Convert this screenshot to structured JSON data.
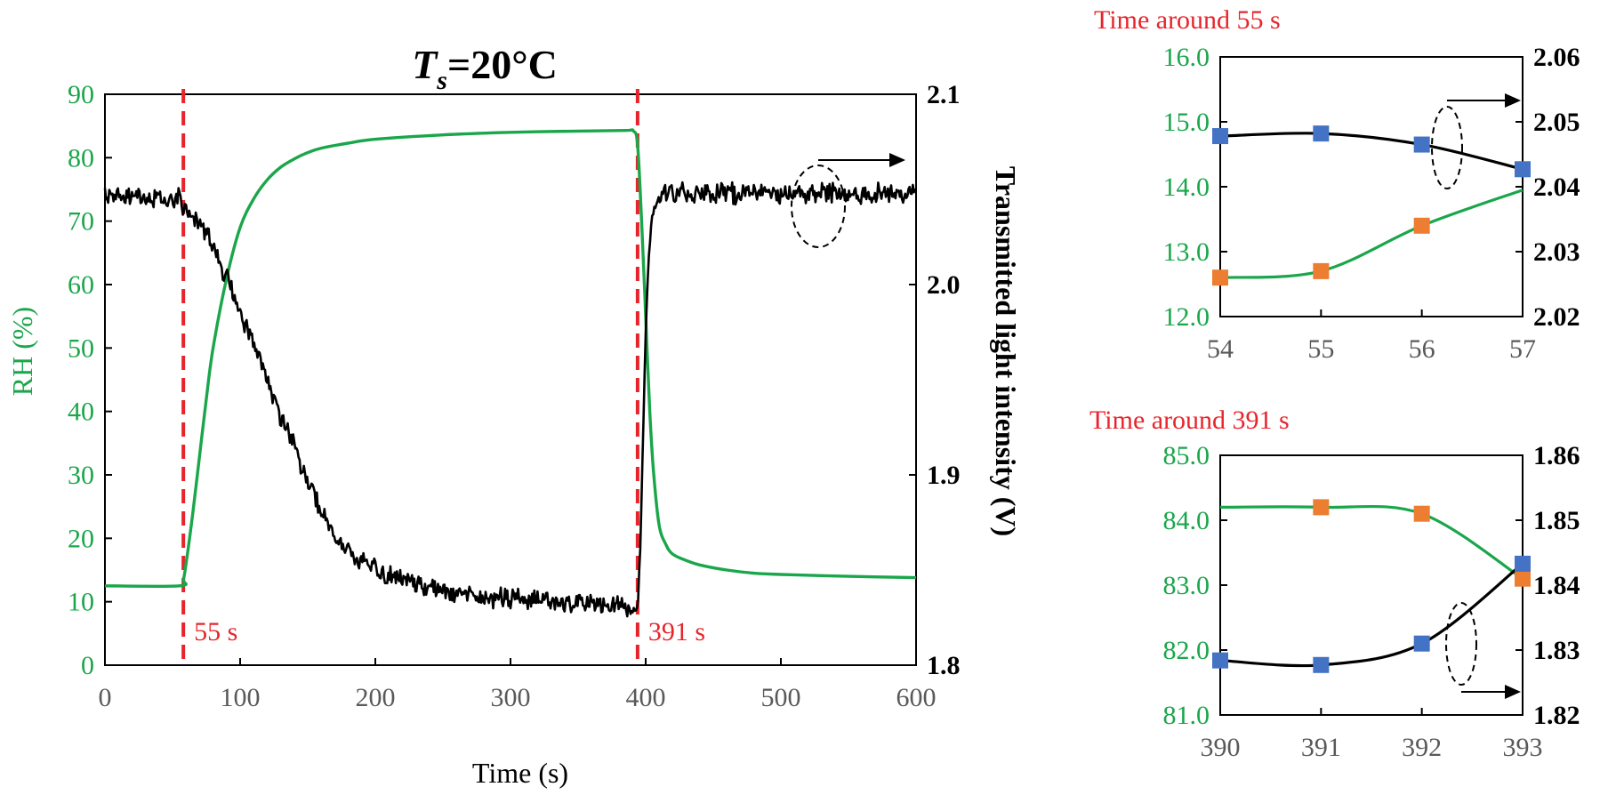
{
  "colors": {
    "rh": "#1aa64a",
    "intensity": "#000000",
    "event_line": "#e8242b",
    "rh_marker": "#ed7d31",
    "intensity_marker": "#4472c4"
  },
  "chart_data": [
    {
      "type": "line",
      "title_main": "T",
      "title_sub": "s",
      "title_rest": "=20°C",
      "xlabel": "Time (s)",
      "ylabel_left": "RH (%)",
      "ylabel_right": "Transmitted light intensity (V)",
      "xlim": [
        0,
        600
      ],
      "ylim_left": [
        0,
        90
      ],
      "ylim_right": [
        1.8,
        2.1
      ],
      "xticks": [
        "0",
        "100",
        "200",
        "300",
        "400",
        "500",
        "600"
      ],
      "yticks_left": [
        "0",
        "10",
        "20",
        "30",
        "40",
        "50",
        "60",
        "70",
        "80",
        "90"
      ],
      "yticks_right": [
        "1.8",
        "1.9",
        "2.0",
        "2.1"
      ],
      "events": [
        {
          "x": 58,
          "label": "55 s"
        },
        {
          "x": 394,
          "label": "391 s"
        }
      ],
      "series": [
        {
          "axis": "left",
          "color": "#1aa64a",
          "x": [
            0,
            55,
            58,
            60,
            65,
            70,
            75,
            80,
            90,
            100,
            110,
            120,
            130,
            140,
            150,
            160,
            180,
            200,
            250,
            300,
            350,
            385,
            391,
            394,
            397,
            400,
            403,
            406,
            410,
            415,
            420,
            430,
            440,
            460,
            480,
            500,
            550,
            600
          ],
          "y": [
            12.5,
            12.5,
            13.5,
            16,
            24,
            33,
            42,
            50,
            61,
            69,
            73.5,
            76.5,
            78.5,
            79.8,
            80.8,
            81.5,
            82.3,
            82.9,
            83.6,
            84.0,
            84.2,
            84.3,
            84.2,
            82,
            70,
            55,
            40,
            30,
            22,
            19,
            17.5,
            16.5,
            15.8,
            15,
            14.5,
            14.3,
            14.0,
            13.8
          ]
        },
        {
          "axis": "right",
          "color": "#000000",
          "noisy": true,
          "x": [
            0,
            20,
            40,
            55,
            60,
            70,
            80,
            90,
            100,
            110,
            120,
            130,
            140,
            150,
            160,
            170,
            180,
            190,
            200,
            220,
            240,
            260,
            280,
            300,
            320,
            340,
            360,
            380,
            391,
            394,
            396,
            398,
            400,
            402,
            404,
            406,
            408,
            410,
            420,
            440,
            460,
            480,
            500,
            520,
            540,
            560,
            580,
            600
          ],
          "y": [
            2.046,
            2.046,
            2.045,
            2.046,
            2.04,
            2.032,
            2.022,
            2.003,
            1.985,
            1.97,
            1.95,
            1.931,
            1.915,
            1.898,
            1.88,
            1.868,
            1.86,
            1.854,
            1.85,
            1.845,
            1.841,
            1.838,
            1.836,
            1.835,
            1.834,
            1.833,
            1.832,
            1.832,
            1.828,
            1.83,
            1.86,
            1.92,
            1.975,
            2.01,
            2.03,
            2.04,
            2.044,
            2.046,
            2.048,
            2.048,
            2.048,
            2.048,
            2.048,
            2.048,
            2.048,
            2.048,
            2.048,
            2.048
          ]
        }
      ]
    },
    {
      "type": "line",
      "title": "Time around 55 s",
      "xlim": [
        54,
        57
      ],
      "ylim_left": [
        12.0,
        16.0
      ],
      "ylim_right": [
        2.02,
        2.06
      ],
      "xticks": [
        "54",
        "55",
        "56",
        "57"
      ],
      "yticks_left": [
        "12.0",
        "13.0",
        "14.0",
        "15.0",
        "16.0"
      ],
      "yticks_right": [
        "2.02",
        "2.03",
        "2.04",
        "2.05",
        "2.06"
      ],
      "series": [
        {
          "axis": "left",
          "color": "#1aa64a",
          "marker_color": "#ed7d31",
          "x": [
            54,
            55,
            56
          ],
          "y": [
            12.6,
            12.7,
            13.4
          ],
          "curve_end": [
            57,
            13.95
          ]
        },
        {
          "axis": "right",
          "color": "#000000",
          "marker_color": "#4472c4",
          "x": [
            54,
            55,
            56,
            57
          ],
          "y": [
            2.0478,
            2.0482,
            2.0465,
            2.0427
          ]
        }
      ]
    },
    {
      "type": "line",
      "title": "Time around 391 s",
      "xlim": [
        390,
        393
      ],
      "ylim_left": [
        81.0,
        85.0
      ],
      "ylim_right": [
        1.82,
        1.86
      ],
      "xticks": [
        "390",
        "391",
        "392",
        "393"
      ],
      "yticks_left": [
        "81.0",
        "82.0",
        "83.0",
        "84.0",
        "85.0"
      ],
      "yticks_right": [
        "1.82",
        "1.83",
        "1.84",
        "1.85",
        "1.86"
      ],
      "series": [
        {
          "axis": "left",
          "color": "#1aa64a",
          "marker_color": "#ed7d31",
          "x": [
            391,
            392,
            393
          ],
          "y": [
            84.2,
            84.1,
            83.1
          ],
          "curve_start": [
            390,
            84.2
          ]
        },
        {
          "axis": "right",
          "color": "#000000",
          "marker_color": "#4472c4",
          "x": [
            390,
            391,
            392,
            393
          ],
          "y": [
            1.8284,
            1.8277,
            1.831,
            1.8433
          ]
        }
      ]
    }
  ]
}
